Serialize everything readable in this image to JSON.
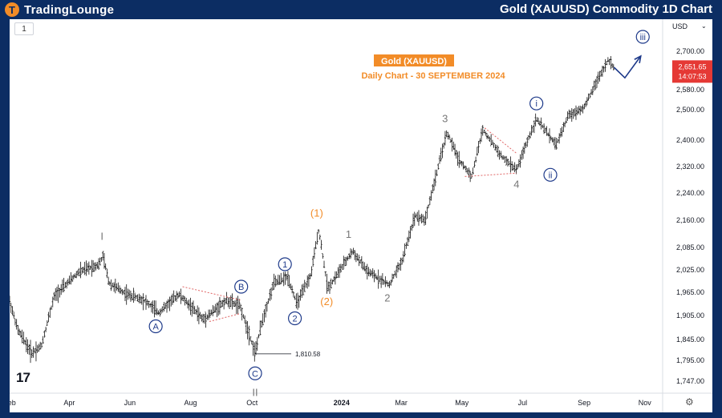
{
  "header": {
    "logo_mark": "T",
    "logo_text": "TradingLounge",
    "title": "Gold (XAUUSD) Commodity 1D Chart"
  },
  "toolbar": {
    "timeframe_label": "1",
    "currency_label": "USD",
    "currency_dropdown_icon": "chevron-down-icon",
    "settings_icon": "gear-icon",
    "brand_icon": "tradingview-logo-icon",
    "tv_logo_text": "17"
  },
  "colors": {
    "header_bg": "#0c2d63",
    "orange": "#f28c28",
    "wave_blue": "#1e3a8a",
    "gray": "#777777",
    "price_red": "#e53935",
    "bars": "#111111"
  },
  "chart_data": {
    "type": "ohlc",
    "title": "Gold (XAUUSD)",
    "subtitle": "Daily Chart - 30 SEPTEMBER 2024",
    "xlabel": "",
    "ylabel": "",
    "ylim": [
      1720,
      2770
    ],
    "y_ticks": [
      2700,
      2580,
      2500,
      2400,
      2320,
      2240,
      2160,
      2085,
      2025,
      1965,
      1905,
      1845,
      1795,
      1747
    ],
    "y_tick_labels": [
      "2,700.00",
      "2,580.00",
      "2,500.00",
      "2,400.00",
      "2,320.00",
      "2,240.00",
      "2,160.00",
      "2,085.00",
      "2,025.00",
      "1,965.00",
      "1,905.00",
      "1,845.00",
      "1,795.00",
      "1,747.00"
    ],
    "x_ticks": [
      {
        "label": "Feb",
        "day": 0
      },
      {
        "label": "Apr",
        "day": 60
      },
      {
        "label": "Jun",
        "day": 121
      },
      {
        "label": "Aug",
        "day": 182
      },
      {
        "label": "Oct",
        "day": 244
      },
      {
        "label": "2024",
        "day": 334
      },
      {
        "label": "Mar",
        "day": 394
      },
      {
        "label": "May",
        "day": 455
      },
      {
        "label": "Jul",
        "day": 516
      },
      {
        "label": "Sep",
        "day": 578
      },
      {
        "label": "Nov",
        "day": 639
      }
    ],
    "price_path": [
      {
        "day": -2,
        "price": 1960
      },
      {
        "day": 8,
        "price": 1870
      },
      {
        "day": 22,
        "price": 1812
      },
      {
        "day": 32,
        "price": 1830
      },
      {
        "day": 45,
        "price": 1955
      },
      {
        "day": 70,
        "price": 2020
      },
      {
        "day": 90,
        "price": 2040
      },
      {
        "day": 94,
        "price": 2062
      },
      {
        "day": 100,
        "price": 1990
      },
      {
        "day": 118,
        "price": 1960
      },
      {
        "day": 135,
        "price": 1945
      },
      {
        "day": 150,
        "price": 1912
      },
      {
        "day": 170,
        "price": 1960
      },
      {
        "day": 195,
        "price": 1895
      },
      {
        "day": 218,
        "price": 1945
      },
      {
        "day": 232,
        "price": 1928
      },
      {
        "day": 247,
        "price": 1812
      },
      {
        "day": 254,
        "price": 1890
      },
      {
        "day": 266,
        "price": 1990
      },
      {
        "day": 280,
        "price": 2005
      },
      {
        "day": 289,
        "price": 1935
      },
      {
        "day": 303,
        "price": 2010
      },
      {
        "day": 311,
        "price": 2135
      },
      {
        "day": 320,
        "price": 1975
      },
      {
        "day": 345,
        "price": 2075
      },
      {
        "day": 360,
        "price": 2020
      },
      {
        "day": 382,
        "price": 1985
      },
      {
        "day": 395,
        "price": 2050
      },
      {
        "day": 408,
        "price": 2175
      },
      {
        "day": 418,
        "price": 2160
      },
      {
        "day": 440,
        "price": 2425
      },
      {
        "day": 452,
        "price": 2340
      },
      {
        "day": 465,
        "price": 2290
      },
      {
        "day": 476,
        "price": 2435
      },
      {
        "day": 495,
        "price": 2350
      },
      {
        "day": 510,
        "price": 2310
      },
      {
        "day": 530,
        "price": 2470
      },
      {
        "day": 550,
        "price": 2385
      },
      {
        "day": 562,
        "price": 2480
      },
      {
        "day": 578,
        "price": 2510
      },
      {
        "day": 588,
        "price": 2590
      },
      {
        "day": 602,
        "price": 2672
      },
      {
        "day": 608,
        "price": 2650
      }
    ],
    "last_price": {
      "price": 2651.65,
      "label": "2,651.65",
      "countdown": "14:07:53"
    },
    "annotations": [
      {
        "text": "I",
        "day": 93,
        "price": 2115,
        "color": "gray"
      },
      {
        "text": "A",
        "day": 147,
        "price": 1878,
        "color": "blue",
        "circle": true
      },
      {
        "text": "B",
        "day": 233,
        "price": 1980,
        "color": "blue",
        "circle": true
      },
      {
        "text": "C",
        "day": 247,
        "price": 1765,
        "color": "blue",
        "circle": true
      },
      {
        "text": "II",
        "day": 247,
        "price": 1720,
        "color": "gray"
      },
      {
        "text": "1",
        "day": 277,
        "price": 2040,
        "color": "blue",
        "circle": true
      },
      {
        "text": "2",
        "day": 287,
        "price": 1898,
        "color": "blue",
        "circle": true
      },
      {
        "text": "(1)",
        "day": 309,
        "price": 2180,
        "color": "orange"
      },
      {
        "text": "(2)",
        "day": 319,
        "price": 1940,
        "color": "orange"
      },
      {
        "text": "1",
        "day": 341,
        "price": 2120,
        "color": "gray"
      },
      {
        "text": "2",
        "day": 380,
        "price": 1950,
        "color": "gray"
      },
      {
        "text": "3",
        "day": 438,
        "price": 2470,
        "color": "gray"
      },
      {
        "text": "4",
        "day": 510,
        "price": 2265,
        "color": "gray"
      },
      {
        "text": "i",
        "day": 530,
        "price": 2525,
        "color": "blue",
        "circle": true
      },
      {
        "text": "ii",
        "day": 544,
        "price": 2295,
        "color": "blue",
        "circle": true
      },
      {
        "text": "iii",
        "day": 637,
        "price": 2745,
        "color": "blue",
        "circle": true
      }
    ],
    "low_marker": {
      "label": "1,810.58",
      "day": 247,
      "price": 1810.58
    },
    "triangles": [
      {
        "upper": [
          [
            174,
            1980
          ],
          [
            232,
            1945
          ]
        ],
        "lower": [
          [
            201,
            1890
          ],
          [
            232,
            1910
          ]
        ]
      },
      {
        "upper": [
          [
            478,
            2440
          ],
          [
            510,
            2360
          ]
        ],
        "lower": [
          [
            458,
            2290
          ],
          [
            510,
            2300
          ]
        ]
      }
    ],
    "projection_arrow": [
      [
        608,
        2650
      ],
      [
        619,
        2617
      ],
      [
        635,
        2685
      ]
    ],
    "grid": false,
    "legend": "none"
  }
}
